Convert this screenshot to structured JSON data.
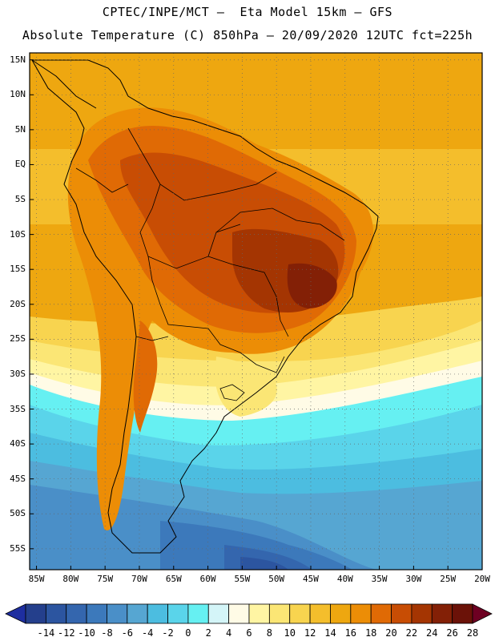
{
  "header": {
    "line1": "CPTEC/INPE/MCT –  Eta Model 15km – GFS",
    "line2": "Absolute Temperature (C) 850hPa – 20/09/2020 12UTC fct=225h"
  },
  "map": {
    "lat_labels": [
      "15N",
      "10N",
      "5N",
      "EQ",
      "5S",
      "10S",
      "15S",
      "20S",
      "25S",
      "30S",
      "35S",
      "40S",
      "45S",
      "50S",
      "55S"
    ],
    "lon_labels": [
      "85W",
      "80W",
      "75W",
      "70W",
      "65W",
      "60W",
      "55W",
      "50W",
      "45W",
      "40W",
      "35W",
      "30W",
      "25W",
      "20W"
    ],
    "grid": "dotted",
    "lon_range": [
      -86,
      -20
    ],
    "lat_range": [
      16,
      -58
    ]
  },
  "colorbar": {
    "labels": [
      "-14",
      "-12",
      "-10",
      "-8",
      "-6",
      "-4",
      "-2",
      "0",
      "2",
      "4",
      "6",
      "8",
      "10",
      "12",
      "14",
      "16",
      "18",
      "20",
      "22",
      "24",
      "26",
      "28"
    ],
    "colors": [
      "#243f8c",
      "#2c55a0",
      "#3466ae",
      "#3c79bb",
      "#4a8fc8",
      "#56a6d2",
      "#4cbde0",
      "#5ad4ea",
      "#66f0f2",
      "#d4f5f8",
      "#fffbe6",
      "#fff5a3",
      "#fbe675",
      "#f8d44f",
      "#f4be2c",
      "#eea710",
      "#ec8d06",
      "#e06a05",
      "#c84d04",
      "#a43502",
      "#832006",
      "#6b1208"
    ]
  },
  "legend": {
    "under_arrow": "#1e2ea0",
    "over_arrow": "#6e0022"
  }
}
